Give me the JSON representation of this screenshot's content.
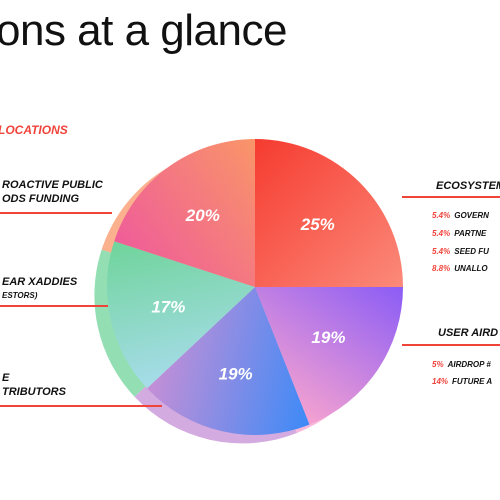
{
  "page": {
    "title": "ons at a glance",
    "section_label": "LOCATIONS"
  },
  "chart_data": {
    "type": "pie",
    "slices": [
      {
        "label": "Ecosystem",
        "value": 25,
        "value_label": "25%",
        "colors": [
          "#f63b30",
          "#fb8a7a"
        ]
      },
      {
        "label": "User Airdrops",
        "value": 19,
        "value_label": "19%",
        "colors": [
          "#8b5cf6",
          "#f5a2d0"
        ]
      },
      {
        "label": "Core Contributors",
        "value": 19,
        "value_label": "19%",
        "colors": [
          "#3d8af7",
          "#c58fd6"
        ]
      },
      {
        "label": "Xaddies (Investors)",
        "value": 17,
        "value_label": "17%",
        "colors": [
          "#a7dcea",
          "#6fd49a"
        ]
      },
      {
        "label": "Retroactive Public Goods Funding",
        "value": 20,
        "value_label": "20%",
        "colors": [
          "#ef5d99",
          "#f99568"
        ]
      }
    ]
  },
  "labels": {
    "ecosystem": "ECOSYSTEM",
    "user_airdrops": "USER AIRD",
    "retro_line1": "ROACTIVE PUBLIC",
    "retro_line2": "ODS FUNDING",
    "xaddies_line1": "EAR XADDIES",
    "xaddies_line2": "ESTORS)",
    "core_line1": "E",
    "core_line2": "TRIBUTORS"
  },
  "ecosystem_breakdown": [
    {
      "pct": "5.4%",
      "name": "GOVERN"
    },
    {
      "pct": "5.4%",
      "name": "PARTNE"
    },
    {
      "pct": "5.4%",
      "name": "SEED FU"
    },
    {
      "pct": "8.8%",
      "name": "UNALLO"
    }
  ],
  "airdrop_breakdown": [
    {
      "pct": "5%",
      "name": "AIRDROP #"
    },
    {
      "pct": "14%",
      "name": "FUTURE A"
    }
  ],
  "colors": {
    "accent": "#f0443b",
    "text": "#111111"
  }
}
